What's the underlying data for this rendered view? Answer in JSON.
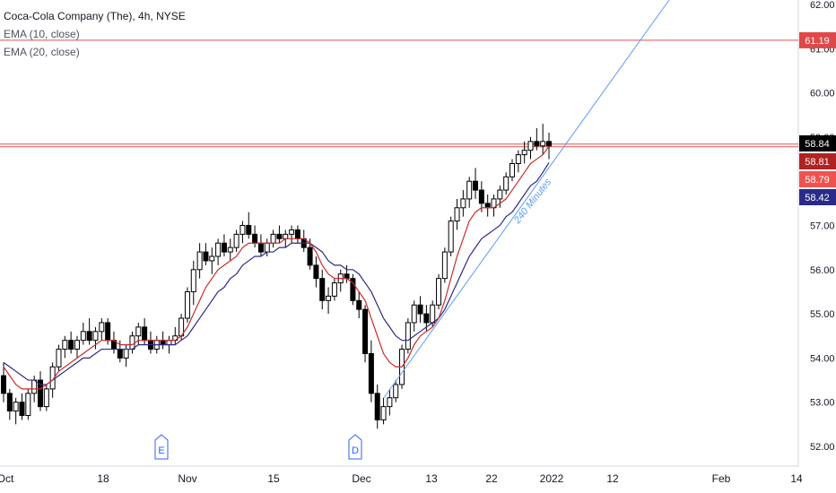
{
  "legend": {
    "title": "Coca-Cola Company (The), 4h, NYSE",
    "ema10": "EMA (10, close)",
    "ema20": "EMA (20, close)"
  },
  "colors": {
    "up": "#ffffff",
    "down": "#000000",
    "ema10": "#cc2b2b",
    "ema20": "#2a2a8a",
    "hline": "#e05050",
    "trendline": "#5b9cf6",
    "grid": "#eef0f3"
  },
  "chart_data": {
    "type": "candlestick",
    "ylim": [
      51.5,
      62.1
    ],
    "y_ticks": [
      "52.00",
      "53.00",
      "54.00",
      "55.00",
      "56.00",
      "57.00",
      "58.00",
      "59.00",
      "60.00",
      "61.00",
      "62.00"
    ],
    "x_ticks": [
      "Oct",
      "18",
      "Nov",
      "15",
      "Dec",
      "13",
      "22",
      "2022",
      "12",
      "Feb",
      "14"
    ],
    "horizontal_lines": [
      61.19,
      58.84
    ],
    "price_badges": [
      {
        "label": "61.19",
        "value": 61.19,
        "bg": "#e04848",
        "fg": "#ffffff"
      },
      {
        "label": "58.84",
        "value": 58.84,
        "bg": "#000000",
        "fg": "#ffffff"
      },
      {
        "label": "58.81",
        "value": 58.81,
        "bg": "#b22222",
        "fg": "#ffffff"
      },
      {
        "label": "58.79",
        "value": 58.79,
        "bg": "#ef5350",
        "fg": "#ffffff"
      },
      {
        "label": "58.42",
        "value": 58.42,
        "bg": "#2a2a8a",
        "fg": "#ffffff"
      }
    ],
    "trendline": {
      "label": "240 Minutes"
    },
    "event_markers": [
      {
        "label": "E"
      },
      {
        "label": "D"
      }
    ],
    "candles": [
      [
        53.6,
        53.9,
        53.0,
        53.2
      ],
      [
        53.2,
        53.3,
        52.6,
        52.8
      ],
      [
        52.8,
        53.1,
        52.5,
        53.0
      ],
      [
        53.0,
        53.2,
        52.6,
        52.7
      ],
      [
        52.7,
        53.3,
        52.6,
        53.2
      ],
      [
        53.2,
        53.6,
        53.0,
        53.5
      ],
      [
        53.5,
        53.7,
        52.8,
        52.9
      ],
      [
        52.9,
        53.4,
        52.8,
        53.3
      ],
      [
        53.3,
        53.9,
        53.1,
        53.8
      ],
      [
        53.8,
        54.3,
        53.7,
        54.2
      ],
      [
        54.2,
        54.5,
        54.0,
        54.4
      ],
      [
        54.4,
        54.6,
        54.1,
        54.2
      ],
      [
        54.2,
        54.5,
        54.0,
        54.4
      ],
      [
        54.4,
        54.8,
        54.3,
        54.6
      ],
      [
        54.6,
        54.9,
        54.3,
        54.4
      ],
      [
        54.4,
        54.7,
        54.2,
        54.6
      ],
      [
        54.6,
        54.9,
        54.4,
        54.8
      ],
      [
        54.8,
        54.9,
        54.3,
        54.4
      ],
      [
        54.4,
        54.6,
        54.1,
        54.2
      ],
      [
        54.2,
        54.4,
        53.9,
        54.0
      ],
      [
        54.0,
        54.3,
        53.8,
        54.2
      ],
      [
        54.2,
        54.6,
        54.1,
        54.5
      ],
      [
        54.5,
        54.8,
        54.3,
        54.7
      ],
      [
        54.7,
        54.9,
        54.3,
        54.4
      ],
      [
        54.4,
        54.6,
        54.1,
        54.2
      ],
      [
        54.2,
        54.5,
        54.1,
        54.4
      ],
      [
        54.4,
        54.6,
        54.2,
        54.3
      ],
      [
        54.3,
        54.5,
        54.1,
        54.4
      ],
      [
        54.4,
        54.7,
        54.3,
        54.5
      ],
      [
        54.5,
        55.0,
        54.4,
        54.9
      ],
      [
        54.9,
        55.6,
        54.8,
        55.5
      ],
      [
        55.5,
        56.2,
        55.2,
        56.0
      ],
      [
        56.0,
        56.6,
        55.8,
        56.4
      ],
      [
        56.4,
        56.6,
        56.1,
        56.2
      ],
      [
        56.2,
        56.5,
        55.9,
        56.3
      ],
      [
        56.3,
        56.7,
        56.1,
        56.6
      ],
      [
        56.6,
        56.8,
        56.3,
        56.4
      ],
      [
        56.4,
        56.7,
        56.2,
        56.5
      ],
      [
        56.5,
        56.9,
        56.4,
        56.8
      ],
      [
        56.8,
        57.1,
        56.6,
        57.0
      ],
      [
        57.0,
        57.3,
        56.7,
        56.8
      ],
      [
        56.8,
        57.0,
        56.5,
        56.6
      ],
      [
        56.6,
        56.8,
        56.3,
        56.4
      ],
      [
        56.4,
        56.7,
        56.3,
        56.6
      ],
      [
        56.6,
        56.9,
        56.5,
        56.8
      ],
      [
        56.8,
        57.0,
        56.6,
        56.7
      ],
      [
        56.7,
        56.9,
        56.5,
        56.8
      ],
      [
        56.8,
        57.0,
        56.6,
        56.9
      ],
      [
        56.9,
        57.0,
        56.6,
        56.7
      ],
      [
        56.7,
        56.9,
        56.4,
        56.5
      ],
      [
        56.5,
        56.7,
        56.0,
        56.1
      ],
      [
        56.1,
        56.3,
        55.6,
        55.8
      ],
      [
        55.8,
        56.0,
        55.1,
        55.3
      ],
      [
        55.3,
        55.6,
        55.0,
        55.4
      ],
      [
        55.4,
        55.8,
        55.3,
        55.7
      ],
      [
        55.7,
        56.0,
        55.5,
        55.9
      ],
      [
        55.9,
        56.1,
        55.7,
        55.8
      ],
      [
        55.8,
        55.9,
        55.2,
        55.3
      ],
      [
        55.3,
        55.5,
        54.9,
        55.1
      ],
      [
        55.1,
        55.2,
        53.9,
        54.1
      ],
      [
        54.1,
        54.4,
        53.0,
        53.2
      ],
      [
        53.2,
        53.4,
        52.4,
        52.6
      ],
      [
        52.6,
        53.1,
        52.5,
        52.9
      ],
      [
        52.9,
        53.3,
        52.7,
        53.1
      ],
      [
        53.1,
        53.5,
        53.0,
        53.4
      ],
      [
        53.4,
        54.3,
        53.3,
        54.2
      ],
      [
        54.2,
        54.9,
        54.1,
        54.8
      ],
      [
        54.8,
        55.3,
        54.6,
        55.2
      ],
      [
        55.2,
        55.4,
        54.8,
        55.0
      ],
      [
        55.0,
        55.2,
        54.6,
        54.8
      ],
      [
        54.8,
        55.3,
        54.7,
        55.2
      ],
      [
        55.2,
        55.9,
        55.1,
        55.8
      ],
      [
        55.8,
        56.5,
        55.7,
        56.4
      ],
      [
        56.4,
        57.2,
        56.3,
        57.1
      ],
      [
        57.1,
        57.6,
        56.9,
        57.4
      ],
      [
        57.4,
        57.8,
        57.2,
        57.6
      ],
      [
        57.6,
        58.1,
        57.4,
        58.0
      ],
      [
        58.0,
        58.3,
        57.6,
        57.8
      ],
      [
        57.8,
        58.0,
        57.3,
        57.5
      ],
      [
        57.5,
        57.7,
        57.2,
        57.4
      ],
      [
        57.4,
        57.7,
        57.2,
        57.6
      ],
      [
        57.6,
        57.9,
        57.4,
        57.8
      ],
      [
        57.8,
        58.2,
        57.7,
        58.1
      ],
      [
        58.1,
        58.5,
        58.0,
        58.4
      ],
      [
        58.4,
        58.7,
        58.2,
        58.6
      ],
      [
        58.6,
        58.9,
        58.4,
        58.7
      ],
      [
        58.7,
        59.0,
        58.5,
        58.9
      ],
      [
        58.9,
        59.2,
        58.7,
        58.8
      ],
      [
        58.8,
        59.3,
        58.6,
        58.9
      ],
      [
        58.9,
        59.1,
        58.5,
        58.8
      ]
    ],
    "ema10": [
      53.8,
      53.6,
      53.4,
      53.3,
      53.3,
      53.3,
      53.3,
      53.4,
      53.5,
      53.7,
      53.8,
      53.9,
      54.0,
      54.1,
      54.2,
      54.3,
      54.4,
      54.4,
      54.4,
      54.3,
      54.3,
      54.3,
      54.4,
      54.4,
      54.4,
      54.4,
      54.4,
      54.4,
      54.4,
      54.5,
      54.7,
      55.0,
      55.3,
      55.6,
      55.8,
      56.0,
      56.1,
      56.2,
      56.3,
      56.5,
      56.6,
      56.6,
      56.6,
      56.6,
      56.6,
      56.6,
      56.7,
      56.7,
      56.7,
      56.7,
      56.6,
      56.4,
      56.1,
      55.9,
      55.8,
      55.8,
      55.8,
      55.7,
      55.5,
      55.3,
      54.9,
      54.5,
      54.1,
      53.9,
      53.8,
      53.8,
      54.0,
      54.3,
      54.5,
      54.6,
      54.7,
      54.9,
      55.3,
      55.8,
      56.3,
      56.7,
      57.1,
      57.3,
      57.4,
      57.4,
      57.4,
      57.5,
      57.6,
      57.8,
      58.0,
      58.2,
      58.4,
      58.5,
      58.6,
      58.79
    ],
    "ema20": [
      53.9,
      53.8,
      53.7,
      53.6,
      53.5,
      53.5,
      53.4,
      53.4,
      53.5,
      53.6,
      53.7,
      53.8,
      53.9,
      54.0,
      54.0,
      54.1,
      54.2,
      54.2,
      54.2,
      54.2,
      54.2,
      54.2,
      54.3,
      54.3,
      54.3,
      54.3,
      54.3,
      54.3,
      54.3,
      54.4,
      54.5,
      54.7,
      54.9,
      55.1,
      55.3,
      55.5,
      55.6,
      55.8,
      55.9,
      56.1,
      56.2,
      56.3,
      56.3,
      56.4,
      56.4,
      56.5,
      56.5,
      56.6,
      56.6,
      56.6,
      56.6,
      56.5,
      56.4,
      56.2,
      56.1,
      56.1,
      56.0,
      56.0,
      55.9,
      55.7,
      55.5,
      55.2,
      54.9,
      54.7,
      54.5,
      54.4,
      54.4,
      54.5,
      54.6,
      54.7,
      54.8,
      54.9,
      55.1,
      55.4,
      55.7,
      56.0,
      56.3,
      56.5,
      56.7,
      56.8,
      56.9,
      57.0,
      57.2,
      57.3,
      57.5,
      57.7,
      57.9,
      58.0,
      58.2,
      58.42
    ]
  }
}
